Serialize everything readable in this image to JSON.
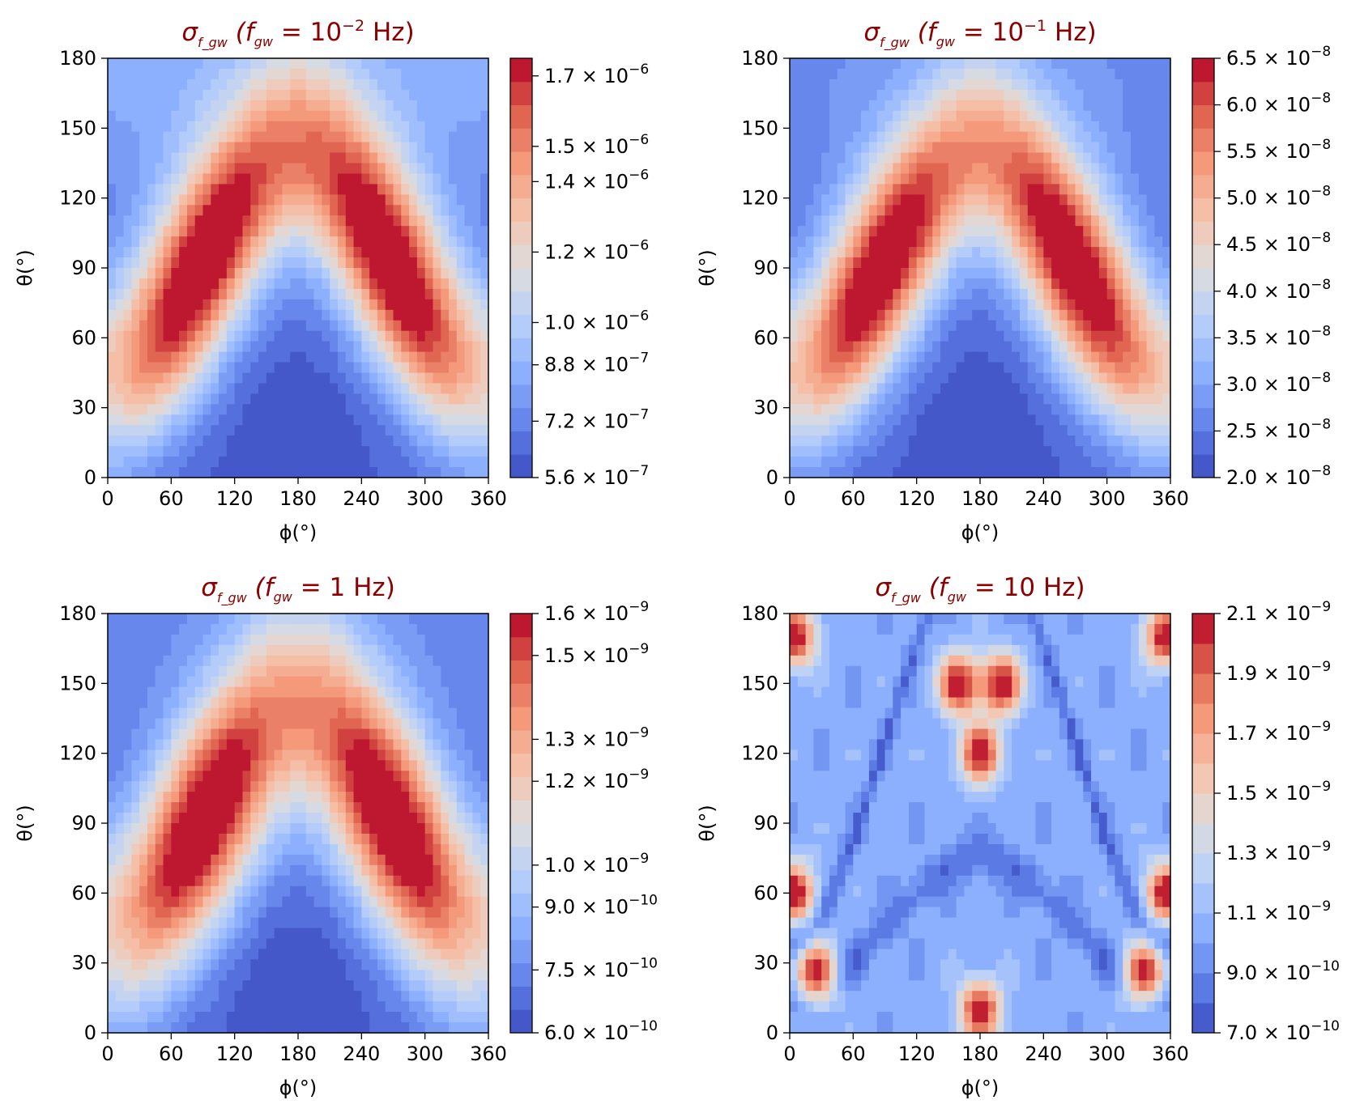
{
  "chart_data": [
    {
      "type": "heatmap",
      "subtype": "filled-contour",
      "title": {
        "symbol": "σ",
        "symbol_sub": "f_gw",
        "prefix": "(f",
        "prefix_sub": "gw",
        "eq": " = 10",
        "exp": "−2",
        "unit": " Hz)"
      },
      "xlabel": "ϕ(°)",
      "ylabel": "θ(°)",
      "xlim": [
        0,
        360
      ],
      "ylim": [
        0,
        180
      ],
      "xticks": [
        "0",
        "60",
        "120",
        "180",
        "240",
        "300",
        "360"
      ],
      "yticks": [
        "0",
        "30",
        "60",
        "90",
        "120",
        "150",
        "180"
      ],
      "colormap": "coolwarm",
      "color_range": [
        5.6e-07,
        1.75e-06
      ],
      "colorbar_levels": 18,
      "colorbar_ticks": [
        {
          "value": 5.6e-07,
          "mant": "5.6",
          "exp": "−7"
        },
        {
          "value": 7.2e-07,
          "mant": "7.2",
          "exp": "−7"
        },
        {
          "value": 8.8e-07,
          "mant": "8.8",
          "exp": "−7"
        },
        {
          "value": 1e-06,
          "mant": "1.0",
          "exp": "−6"
        },
        {
          "value": 1.2e-06,
          "mant": "1.2",
          "exp": "−6"
        },
        {
          "value": 1.4e-06,
          "mant": "1.4",
          "exp": "−6"
        },
        {
          "value": 1.5e-06,
          "mant": "1.5",
          "exp": "−6"
        },
        {
          "value": 1.7e-06,
          "mant": "1.7",
          "exp": "−6"
        }
      ],
      "peaks_deg": [
        {
          "phi": 85,
          "theta": 90
        },
        {
          "phi": 270,
          "theta": 90
        }
      ],
      "field_model": {
        "kind": "dual-lobe",
        "top_level": 0.2,
        "ridge_width": 0.16,
        "lobe_rho": 0.55
      }
    },
    {
      "type": "heatmap",
      "subtype": "filled-contour",
      "title": {
        "symbol": "σ",
        "symbol_sub": "f_gw",
        "prefix": "(f",
        "prefix_sub": "gw",
        "eq": " = 10",
        "exp": "−1",
        "unit": " Hz)"
      },
      "xlabel": "ϕ(°)",
      "ylabel": "θ(°)",
      "xlim": [
        0,
        360
      ],
      "ylim": [
        0,
        180
      ],
      "xticks": [
        "0",
        "60",
        "120",
        "180",
        "240",
        "300",
        "360"
      ],
      "yticks": [
        "0",
        "30",
        "60",
        "90",
        "120",
        "150",
        "180"
      ],
      "colormap": "coolwarm",
      "color_range": [
        2e-08,
        6.5e-08
      ],
      "colorbar_levels": 18,
      "colorbar_ticks": [
        {
          "value": 2e-08,
          "mant": "2.0",
          "exp": "−8"
        },
        {
          "value": 2.5e-08,
          "mant": "2.5",
          "exp": "−8"
        },
        {
          "value": 3e-08,
          "mant": "3.0",
          "exp": "−8"
        },
        {
          "value": 3.5e-08,
          "mant": "3.5",
          "exp": "−8"
        },
        {
          "value": 4e-08,
          "mant": "4.0",
          "exp": "−8"
        },
        {
          "value": 4.5e-08,
          "mant": "4.5",
          "exp": "−8"
        },
        {
          "value": 5e-08,
          "mant": "5.0",
          "exp": "−8"
        },
        {
          "value": 5.5e-08,
          "mant": "5.5",
          "exp": "−8"
        },
        {
          "value": 6e-08,
          "mant": "6.0",
          "exp": "−8"
        },
        {
          "value": 6.5e-08,
          "mant": "6.5",
          "exp": "−8"
        }
      ],
      "peaks_deg": [
        {
          "phi": 85,
          "theta": 90
        },
        {
          "phi": 270,
          "theta": 90
        }
      ],
      "field_model": {
        "kind": "dual-lobe",
        "top_level": 0.12,
        "ridge_width": 0.15,
        "lobe_rho": 0.55
      }
    },
    {
      "type": "heatmap",
      "subtype": "filled-contour",
      "title": {
        "symbol": "σ",
        "symbol_sub": "f_gw",
        "prefix": "(f",
        "prefix_sub": "gw",
        "eq": " = 1",
        "exp": "",
        "unit": " Hz)"
      },
      "xlabel": "ϕ(°)",
      "ylabel": "θ(°)",
      "xlim": [
        0,
        360
      ],
      "ylim": [
        0,
        180
      ],
      "xticks": [
        "0",
        "60",
        "120",
        "180",
        "240",
        "300",
        "360"
      ],
      "yticks": [
        "0",
        "30",
        "60",
        "90",
        "120",
        "150",
        "180"
      ],
      "colormap": "coolwarm",
      "color_range": [
        6e-10,
        1.6e-09
      ],
      "colorbar_levels": 18,
      "colorbar_ticks": [
        {
          "value": 6e-10,
          "mant": "6.0",
          "exp": "−10"
        },
        {
          "value": 7.5e-10,
          "mant": "7.5",
          "exp": "−10"
        },
        {
          "value": 9e-10,
          "mant": "9.0",
          "exp": "−10"
        },
        {
          "value": 1e-09,
          "mant": "1.0",
          "exp": "−9"
        },
        {
          "value": 1.2e-09,
          "mant": "1.2",
          "exp": "−9"
        },
        {
          "value": 1.3e-09,
          "mant": "1.3",
          "exp": "−9"
        },
        {
          "value": 1.5e-09,
          "mant": "1.5",
          "exp": "−9"
        },
        {
          "value": 1.6e-09,
          "mant": "1.6",
          "exp": "−9"
        }
      ],
      "peaks_deg": [
        {
          "phi": 90,
          "theta": 90
        },
        {
          "phi": 270,
          "theta": 90
        }
      ],
      "field_model": {
        "kind": "dual-lobe",
        "top_level": 0.1,
        "ridge_width": 0.18,
        "lobe_rho": 0.5
      }
    },
    {
      "type": "heatmap",
      "subtype": "filled-contour",
      "title": {
        "symbol": "σ",
        "symbol_sub": "f_gw",
        "prefix": "(f",
        "prefix_sub": "gw",
        "eq": " = 10",
        "exp": "",
        "unit": " Hz)"
      },
      "xlabel": "ϕ(°)",
      "ylabel": "θ(°)",
      "xlim": [
        0,
        360
      ],
      "ylim": [
        0,
        180
      ],
      "xticks": [
        "0",
        "60",
        "120",
        "180",
        "240",
        "300",
        "360"
      ],
      "yticks": [
        "0",
        "30",
        "60",
        "90",
        "120",
        "150",
        "180"
      ],
      "colormap": "coolwarm",
      "color_range": [
        7e-10,
        2.1e-09
      ],
      "colorbar_levels": 14,
      "colorbar_ticks": [
        {
          "value": 7e-10,
          "mant": "7.0",
          "exp": "−10"
        },
        {
          "value": 9e-10,
          "mant": "9.0",
          "exp": "−10"
        },
        {
          "value": 1.1e-09,
          "mant": "1.1",
          "exp": "−9"
        },
        {
          "value": 1.3e-09,
          "mant": "1.3",
          "exp": "−9"
        },
        {
          "value": 1.5e-09,
          "mant": "1.5",
          "exp": "−9"
        },
        {
          "value": 1.7e-09,
          "mant": "1.7",
          "exp": "−9"
        },
        {
          "value": 1.9e-09,
          "mant": "1.9",
          "exp": "−9"
        },
        {
          "value": 2.1e-09,
          "mant": "2.1",
          "exp": "−9"
        }
      ],
      "hotspots_deg": [
        {
          "phi": 5,
          "theta": 170
        },
        {
          "phi": 355,
          "theta": 170
        },
        {
          "phi": 160,
          "theta": 150
        },
        {
          "phi": 200,
          "theta": 150
        },
        {
          "phi": 180,
          "theta": 120
        },
        {
          "phi": 5,
          "theta": 60
        },
        {
          "phi": 355,
          "theta": 60
        },
        {
          "phi": 25,
          "theta": 25
        },
        {
          "phi": 335,
          "theta": 25
        },
        {
          "phi": 180,
          "theta": 10
        }
      ],
      "field_model": {
        "kind": "patterned"
      }
    }
  ]
}
